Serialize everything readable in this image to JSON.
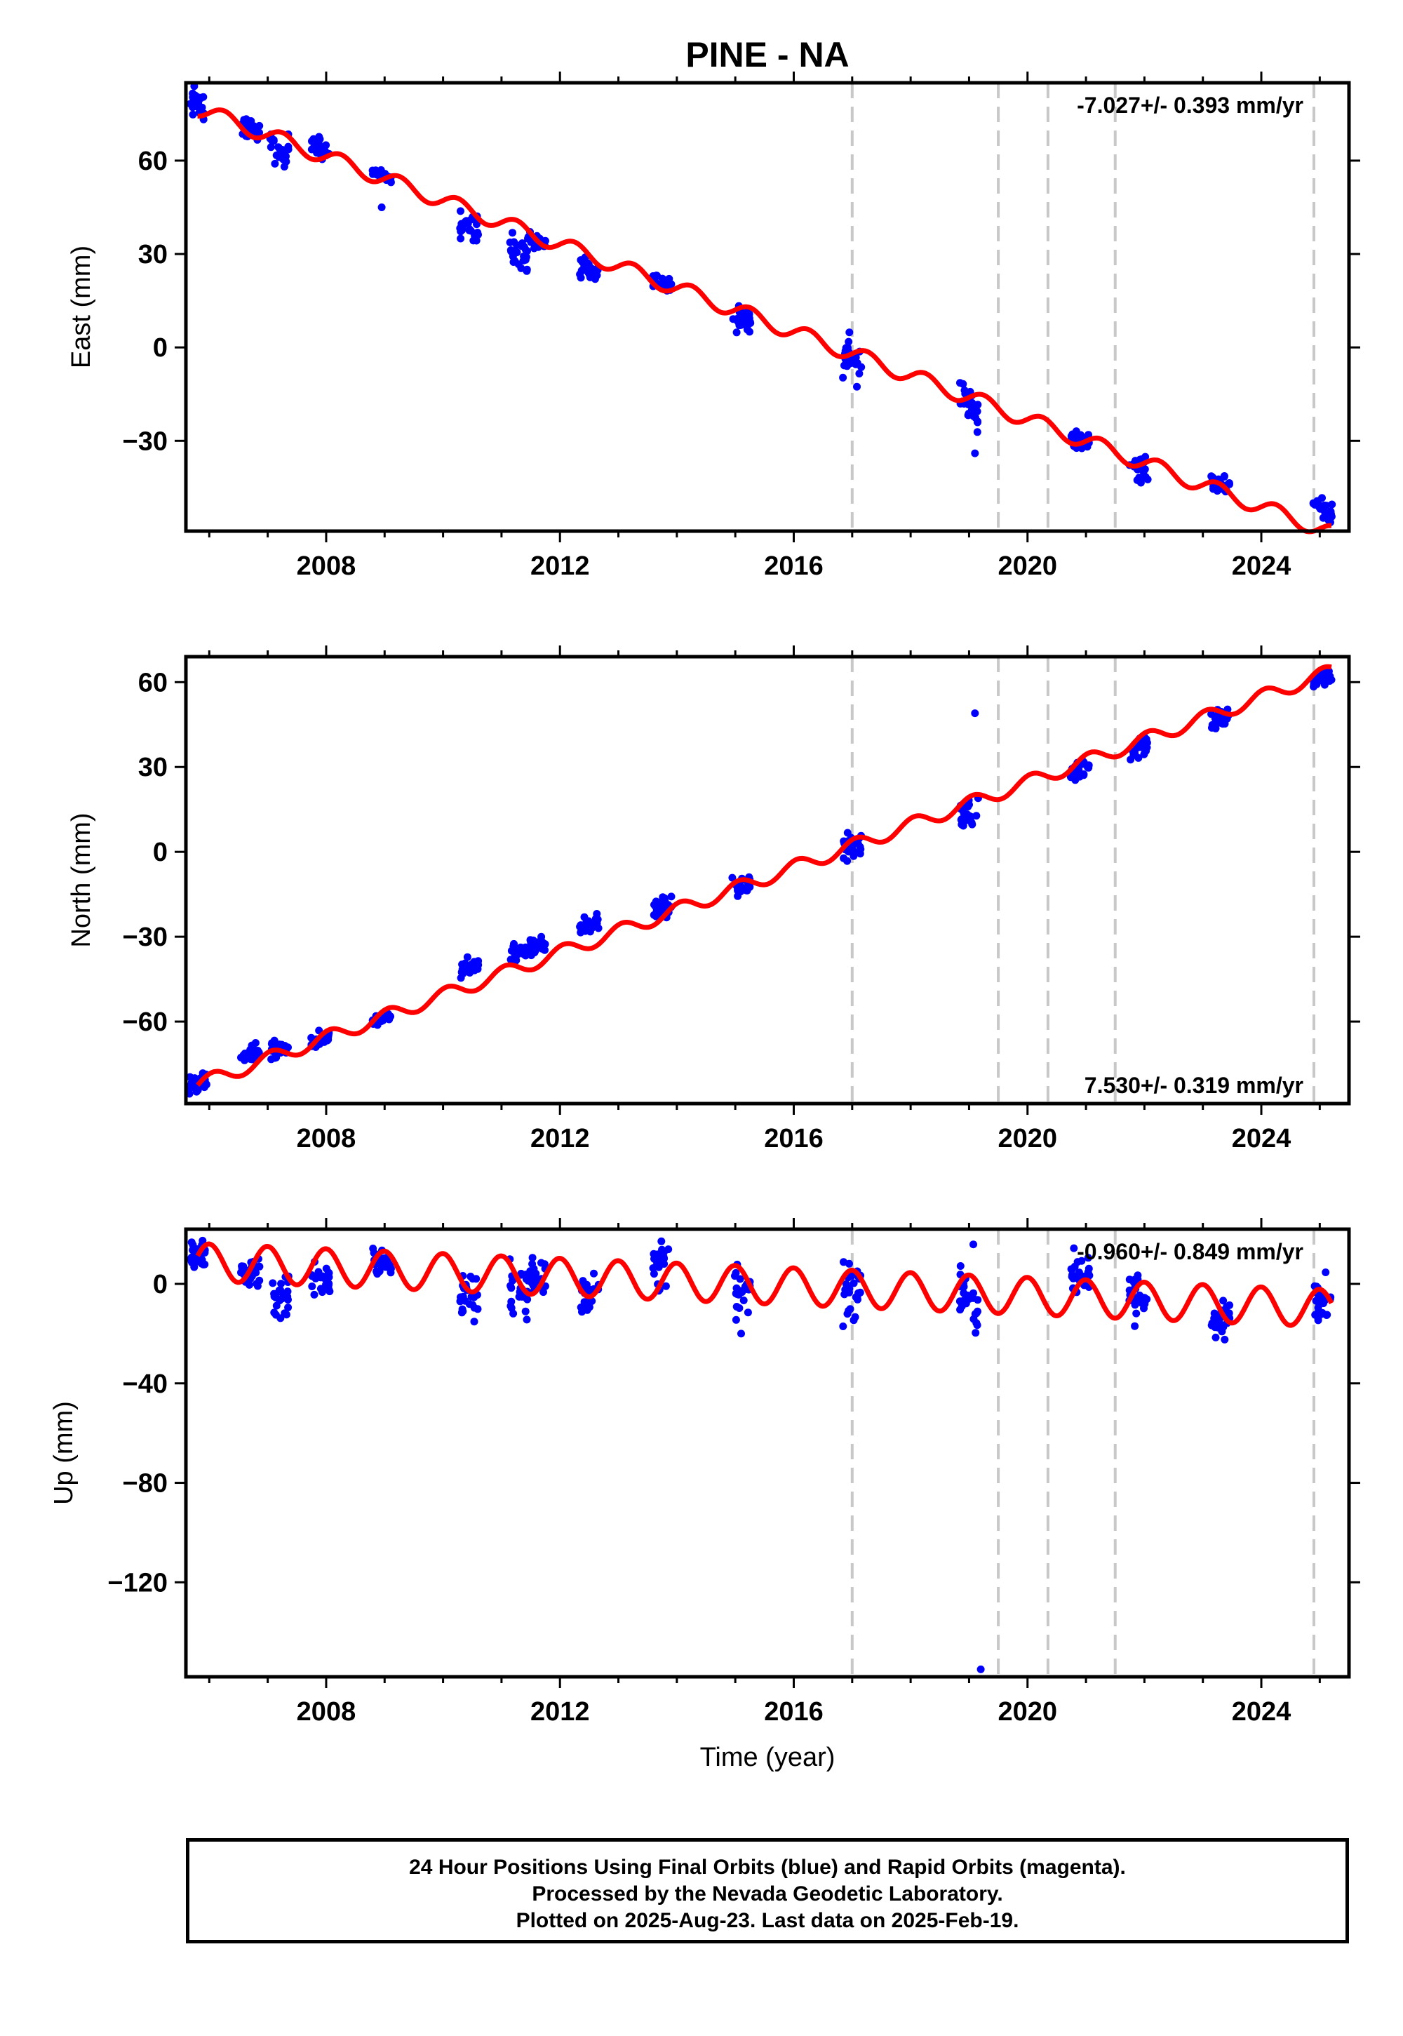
{
  "title": "PINE - NA",
  "colors": {
    "data": "#0000ff",
    "model": "#ff0000",
    "steps": "#c8c8c8",
    "frame": "#000000"
  },
  "x_label": "Time (year)",
  "footer": {
    "line1": "24 Hour Positions Using Final Orbits (blue) and Rapid Orbits (magenta).",
    "line2": "Processed by the Nevada Geodetic Laboratory.",
    "line3": "Plotted on 2025-Aug-23. Last data on 2025-Feb-19."
  },
  "chart_data": [
    {
      "type": "scatter",
      "ylabel": "East (mm)",
      "rate_label": "-7.027+/- 0.393 mm/yr",
      "rate_position": "top-right",
      "xlim": [
        2005.6,
        2025.5
      ],
      "ylim": [
        -59,
        85
      ],
      "x_ticks": [
        2008,
        2012,
        2016,
        2020,
        2024
      ],
      "y_ticks": [
        60,
        30,
        0,
        -30
      ],
      "y_tick_labels": [
        "60",
        "30",
        "0",
        "−30"
      ],
      "step_lines": [
        2017.0,
        2019.5,
        2020.35,
        2021.5,
        2024.9
      ],
      "model": {
        "rate": -7.027,
        "value_at_2017": -2,
        "annual_amp": 2.5,
        "phase": 0.0
      },
      "clusters": [
        [
          2005.8,
          78,
          3
        ],
        [
          2006.7,
          70,
          2
        ],
        [
          2007.2,
          64,
          3
        ],
        [
          2007.9,
          64,
          2
        ],
        [
          2008.95,
          55,
          1
        ],
        [
          2010.45,
          39,
          3
        ],
        [
          2011.3,
          31,
          3
        ],
        [
          2011.6,
          34,
          2
        ],
        [
          2012.5,
          25,
          2
        ],
        [
          2013.75,
          21,
          2
        ],
        [
          2015.1,
          9,
          3
        ],
        [
          2017.0,
          -4,
          4
        ],
        [
          2019.0,
          -18,
          4
        ],
        [
          2020.9,
          -30,
          2
        ],
        [
          2021.9,
          -38,
          3
        ],
        [
          2023.3,
          -44,
          2
        ],
        [
          2025.05,
          -52,
          2
        ]
      ],
      "outliers": [
        [
          2008.95,
          45
        ],
        [
          2019.1,
          -34
        ]
      ]
    },
    {
      "type": "scatter",
      "ylabel": "North (mm)",
      "rate_label": "7.530+/- 0.319 mm/yr",
      "rate_position": "bottom-right",
      "xlim": [
        2005.6,
        2025.5
      ],
      "ylim": [
        -89,
        69
      ],
      "x_ticks": [
        2008,
        2012,
        2016,
        2020,
        2024
      ],
      "y_ticks": [
        60,
        30,
        0,
        -30,
        -60
      ],
      "y_tick_labels": [
        "60",
        "30",
        "0",
        "−30",
        "−60"
      ],
      "step_lines": [
        2017.0,
        2019.5,
        2020.35,
        2021.5,
        2024.9
      ],
      "model": {
        "rate": 7.53,
        "value_at_2017": 2,
        "annual_amp": 2.5,
        "phase": 1.2
      },
      "clusters": [
        [
          2005.8,
          -82,
          2
        ],
        [
          2006.7,
          -72,
          2
        ],
        [
          2007.2,
          -70,
          2
        ],
        [
          2007.9,
          -67,
          2
        ],
        [
          2008.95,
          -59,
          1
        ],
        [
          2010.45,
          -41,
          2
        ],
        [
          2011.3,
          -35,
          2
        ],
        [
          2011.6,
          -33,
          2
        ],
        [
          2012.5,
          -26,
          2
        ],
        [
          2013.75,
          -20,
          2
        ],
        [
          2015.1,
          -12,
          2
        ],
        [
          2017.0,
          2,
          3
        ],
        [
          2019.0,
          14,
          3
        ],
        [
          2020.9,
          29,
          2
        ],
        [
          2021.9,
          37,
          2
        ],
        [
          2023.3,
          47,
          2
        ],
        [
          2025.05,
          62,
          2
        ]
      ],
      "outliers": [
        [
          2019.1,
          49
        ]
      ]
    },
    {
      "type": "scatter",
      "ylabel": "Up (mm)",
      "rate_label": "-0.960+/- 0.849 mm/yr",
      "rate_position": "top-right",
      "xlim": [
        2005.6,
        2025.5
      ],
      "ylim": [
        -158,
        22
      ],
      "x_ticks": [
        2008,
        2012,
        2016,
        2020,
        2024
      ],
      "y_ticks": [
        0,
        -40,
        -80,
        -120
      ],
      "y_tick_labels": [
        "0",
        "−40",
        "−80",
        "−120"
      ],
      "step_lines": [
        2017.0,
        2019.5,
        2020.35,
        2021.5,
        2024.9
      ],
      "model": {
        "rate": -0.96,
        "value_at_2017": -2,
        "annual_amp": 7.5,
        "phase": 1.6
      },
      "clusters": [
        [
          2005.8,
          12,
          4
        ],
        [
          2006.7,
          4,
          5
        ],
        [
          2007.2,
          -4,
          6
        ],
        [
          2007.9,
          1,
          5
        ],
        [
          2008.95,
          9,
          4
        ],
        [
          2010.45,
          -5,
          6
        ],
        [
          2011.3,
          -3,
          7
        ],
        [
          2011.6,
          2,
          6
        ],
        [
          2012.5,
          -2,
          6
        ],
        [
          2013.75,
          7,
          6
        ],
        [
          2015.1,
          -4,
          5
        ],
        [
          2017.0,
          -2,
          8
        ],
        [
          2019.0,
          -4,
          9
        ],
        [
          2020.9,
          2,
          6
        ],
        [
          2021.9,
          -5,
          6
        ],
        [
          2023.3,
          -15,
          5
        ],
        [
          2025.05,
          -5,
          5
        ]
      ],
      "outliers": [
        [
          2015.1,
          -20
        ],
        [
          2019.2,
          -155
        ]
      ]
    }
  ]
}
